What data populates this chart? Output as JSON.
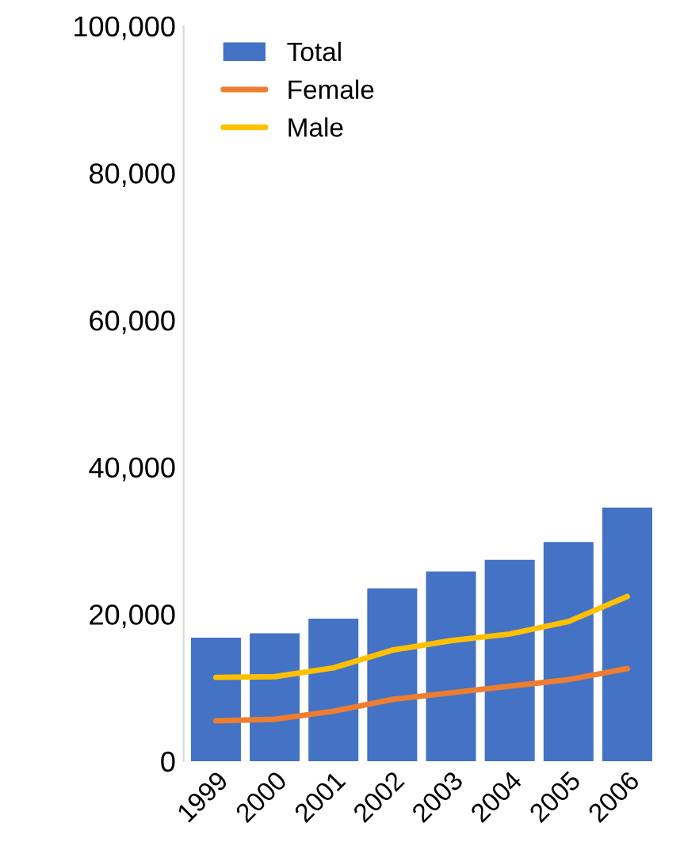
{
  "chart_data": {
    "type": "bar",
    "categories": [
      "1999",
      "2000",
      "2001",
      "2002",
      "2003",
      "2004",
      "2005",
      "2006"
    ],
    "series": [
      {
        "name": "Total",
        "color": "#4472c4",
        "values": [
          16800,
          17400,
          19400,
          23500,
          25800,
          27400,
          29800,
          34500
        ]
      },
      {
        "name": "Female",
        "type": "line",
        "color": "#ed7d31",
        "values": [
          5500,
          5700,
          6800,
          8400,
          9300,
          10200,
          11100,
          12600
        ]
      },
      {
        "name": "Male",
        "type": "line",
        "color": "#ffc000",
        "values": [
          11400,
          11500,
          12700,
          15100,
          16400,
          17300,
          19000,
          22400
        ]
      }
    ],
    "ylim": [
      0,
      100000
    ],
    "yticks": [
      {
        "value": 0,
        "label": "0"
      },
      {
        "value": 20000,
        "label": "20,000"
      },
      {
        "value": 40000,
        "label": "40,000"
      },
      {
        "value": 60000,
        "label": "60,000"
      },
      {
        "value": 80000,
        "label": "80,000"
      },
      {
        "value": 100000,
        "label": "100,000"
      }
    ],
    "grid": false,
    "legend": "top left",
    "marker": "none",
    "line_style": "solid"
  }
}
